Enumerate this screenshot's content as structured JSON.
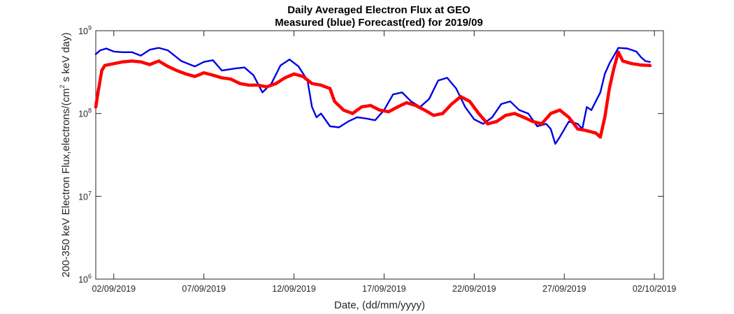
{
  "chart_data": {
    "type": "line",
    "title": "Daily Averaged Electron Flux at GEO",
    "subtitle": "Measured (blue) Forecast(red) for 2019/09",
    "xlabel": "Date, (dd/mm/yyyy)",
    "ylabel_main": "200-350 keV Electron Flux,electrons/(cm",
    "ylabel_sup": "2",
    "ylabel_tail": " s keV day)",
    "x_range": [
      "2019-09-01T00:00",
      "2019-10-02T12:00"
    ],
    "y_scale": "log",
    "ylim": [
      1000000,
      1000000000
    ],
    "grid": false,
    "x_ticks": [
      {
        "date": "2019-09-02",
        "label": "02/09/2019"
      },
      {
        "date": "2019-09-07",
        "label": "07/09/2019"
      },
      {
        "date": "2019-09-12",
        "label": "12/09/2019"
      },
      {
        "date": "2019-09-17",
        "label": "17/09/2019"
      },
      {
        "date": "2019-09-22",
        "label": "22/09/2019"
      },
      {
        "date": "2019-09-27",
        "label": "27/09/2019"
      },
      {
        "date": "2019-10-02",
        "label": "02/10/2019"
      }
    ],
    "y_ticks": [
      {
        "value": 1000000,
        "base": "10",
        "exp": "6"
      },
      {
        "value": 10000000,
        "base": "10",
        "exp": "7"
      },
      {
        "value": 100000000,
        "base": "10",
        "exp": "8"
      },
      {
        "value": 1000000000,
        "base": "10",
        "exp": "9"
      }
    ],
    "series": [
      {
        "name": "Measured",
        "color": "#0000e6",
        "style": "line",
        "points": [
          [
            "2019-09-01T00:00",
            520000000
          ],
          [
            "2019-09-01T06:00",
            580000000
          ],
          [
            "2019-09-01T14:00",
            610000000
          ],
          [
            "2019-09-02T00:00",
            560000000
          ],
          [
            "2019-09-02T12:00",
            550000000
          ],
          [
            "2019-09-03T00:00",
            550000000
          ],
          [
            "2019-09-03T12:00",
            500000000
          ],
          [
            "2019-09-04T00:00",
            590000000
          ],
          [
            "2019-09-04T12:00",
            620000000
          ],
          [
            "2019-09-05T00:00",
            580000000
          ],
          [
            "2019-09-05T18:00",
            430000000
          ],
          [
            "2019-09-06T12:00",
            370000000
          ],
          [
            "2019-09-07T00:00",
            420000000
          ],
          [
            "2019-09-07T12:00",
            440000000
          ],
          [
            "2019-09-08T00:00",
            330000000
          ],
          [
            "2019-09-08T18:00",
            350000000
          ],
          [
            "2019-09-09T06:00",
            360000000
          ],
          [
            "2019-09-09T18:00",
            290000000
          ],
          [
            "2019-09-10T06:00",
            180000000
          ],
          [
            "2019-09-10T18:00",
            230000000
          ],
          [
            "2019-09-11T06:00",
            380000000
          ],
          [
            "2019-09-11T18:00",
            450000000
          ],
          [
            "2019-09-12T06:00",
            370000000
          ],
          [
            "2019-09-12T18:00",
            250000000
          ],
          [
            "2019-09-13T00:00",
            120000000
          ],
          [
            "2019-09-13T06:00",
            90000000
          ],
          [
            "2019-09-13T12:00",
            100000000
          ],
          [
            "2019-09-14T00:00",
            70000000
          ],
          [
            "2019-09-14T12:00",
            68000000
          ],
          [
            "2019-09-15T00:00",
            80000000
          ],
          [
            "2019-09-15T12:00",
            90000000
          ],
          [
            "2019-09-16T00:00",
            87000000
          ],
          [
            "2019-09-16T12:00",
            83000000
          ],
          [
            "2019-09-17T00:00",
            110000000
          ],
          [
            "2019-09-17T12:00",
            170000000
          ],
          [
            "2019-09-18T00:00",
            180000000
          ],
          [
            "2019-09-18T12:00",
            140000000
          ],
          [
            "2019-09-19T00:00",
            120000000
          ],
          [
            "2019-09-19T12:00",
            150000000
          ],
          [
            "2019-09-20T00:00",
            250000000
          ],
          [
            "2019-09-20T12:00",
            270000000
          ],
          [
            "2019-09-21T00:00",
            200000000
          ],
          [
            "2019-09-21T12:00",
            120000000
          ],
          [
            "2019-09-22T00:00",
            85000000
          ],
          [
            "2019-09-22T12:00",
            75000000
          ],
          [
            "2019-09-23T00:00",
            90000000
          ],
          [
            "2019-09-23T12:00",
            130000000
          ],
          [
            "2019-09-24T00:00",
            140000000
          ],
          [
            "2019-09-24T12:00",
            110000000
          ],
          [
            "2019-09-25T00:00",
            100000000
          ],
          [
            "2019-09-25T12:00",
            70000000
          ],
          [
            "2019-09-26T00:00",
            75000000
          ],
          [
            "2019-09-26T06:00",
            65000000
          ],
          [
            "2019-09-26T12:00",
            43000000
          ],
          [
            "2019-09-26T18:00",
            52000000
          ],
          [
            "2019-09-27T06:00",
            80000000
          ],
          [
            "2019-09-27T18:00",
            75000000
          ],
          [
            "2019-09-28T00:00",
            65000000
          ],
          [
            "2019-09-28T06:00",
            120000000
          ],
          [
            "2019-09-28T12:00",
            110000000
          ],
          [
            "2019-09-29T00:00",
            180000000
          ],
          [
            "2019-09-29T06:00",
            300000000
          ],
          [
            "2019-09-29T12:00",
            400000000
          ],
          [
            "2019-09-30T00:00",
            620000000
          ],
          [
            "2019-09-30T12:00",
            610000000
          ],
          [
            "2019-10-01T00:00",
            560000000
          ],
          [
            "2019-10-01T06:00",
            480000000
          ],
          [
            "2019-10-01T12:00",
            430000000
          ],
          [
            "2019-10-01T18:00",
            420000000
          ]
        ]
      },
      {
        "name": "Forecast",
        "color": "#ff0000",
        "style": "dots",
        "points": [
          [
            "2019-09-01T00:00",
            120000000
          ],
          [
            "2019-09-01T03:00",
            180000000
          ],
          [
            "2019-09-01T08:00",
            330000000
          ],
          [
            "2019-09-01T12:00",
            380000000
          ],
          [
            "2019-09-02T00:00",
            400000000
          ],
          [
            "2019-09-02T12:00",
            420000000
          ],
          [
            "2019-09-03T00:00",
            430000000
          ],
          [
            "2019-09-03T12:00",
            420000000
          ],
          [
            "2019-09-04T00:00",
            390000000
          ],
          [
            "2019-09-04T06:00",
            410000000
          ],
          [
            "2019-09-04T12:00",
            430000000
          ],
          [
            "2019-09-05T00:00",
            370000000
          ],
          [
            "2019-09-05T12:00",
            330000000
          ],
          [
            "2019-09-06T00:00",
            300000000
          ],
          [
            "2019-09-06T12:00",
            280000000
          ],
          [
            "2019-09-07T00:00",
            310000000
          ],
          [
            "2019-09-07T12:00",
            290000000
          ],
          [
            "2019-09-08T00:00",
            270000000
          ],
          [
            "2019-09-08T12:00",
            260000000
          ],
          [
            "2019-09-09T00:00",
            230000000
          ],
          [
            "2019-09-09T12:00",
            220000000
          ],
          [
            "2019-09-10T00:00",
            220000000
          ],
          [
            "2019-09-10T12:00",
            210000000
          ],
          [
            "2019-09-11T00:00",
            230000000
          ],
          [
            "2019-09-11T12:00",
            270000000
          ],
          [
            "2019-09-12T00:00",
            300000000
          ],
          [
            "2019-09-12T12:00",
            280000000
          ],
          [
            "2019-09-13T00:00",
            230000000
          ],
          [
            "2019-09-13T12:00",
            220000000
          ],
          [
            "2019-09-14T00:00",
            200000000
          ],
          [
            "2019-09-14T06:00",
            140000000
          ],
          [
            "2019-09-14T18:00",
            110000000
          ],
          [
            "2019-09-15T06:00",
            100000000
          ],
          [
            "2019-09-15T18:00",
            120000000
          ],
          [
            "2019-09-16T06:00",
            125000000
          ],
          [
            "2019-09-16T18:00",
            110000000
          ],
          [
            "2019-09-17T06:00",
            105000000
          ],
          [
            "2019-09-17T18:00",
            120000000
          ],
          [
            "2019-09-18T06:00",
            135000000
          ],
          [
            "2019-09-18T18:00",
            125000000
          ],
          [
            "2019-09-19T06:00",
            110000000
          ],
          [
            "2019-09-19T18:00",
            95000000
          ],
          [
            "2019-09-20T06:00",
            100000000
          ],
          [
            "2019-09-20T18:00",
            130000000
          ],
          [
            "2019-09-21T06:00",
            160000000
          ],
          [
            "2019-09-21T18:00",
            140000000
          ],
          [
            "2019-09-22T06:00",
            100000000
          ],
          [
            "2019-09-22T18:00",
            75000000
          ],
          [
            "2019-09-23T06:00",
            80000000
          ],
          [
            "2019-09-23T18:00",
            95000000
          ],
          [
            "2019-09-24T06:00",
            100000000
          ],
          [
            "2019-09-24T18:00",
            90000000
          ],
          [
            "2019-09-25T06:00",
            80000000
          ],
          [
            "2019-09-25T18:00",
            75000000
          ],
          [
            "2019-09-26T06:00",
            100000000
          ],
          [
            "2019-09-26T18:00",
            110000000
          ],
          [
            "2019-09-27T06:00",
            90000000
          ],
          [
            "2019-09-27T18:00",
            65000000
          ],
          [
            "2019-09-28T06:00",
            62000000
          ],
          [
            "2019-09-28T18:00",
            58000000
          ],
          [
            "2019-09-29T00:00",
            52000000
          ],
          [
            "2019-09-29T06:00",
            90000000
          ],
          [
            "2019-09-29T12:00",
            200000000
          ],
          [
            "2019-09-29T18:00",
            350000000
          ],
          [
            "2019-09-30T00:00",
            550000000
          ],
          [
            "2019-09-30T06:00",
            430000000
          ],
          [
            "2019-09-30T18:00",
            400000000
          ],
          [
            "2019-10-01T06:00",
            385000000
          ],
          [
            "2019-10-01T18:00",
            380000000
          ]
        ]
      }
    ]
  }
}
